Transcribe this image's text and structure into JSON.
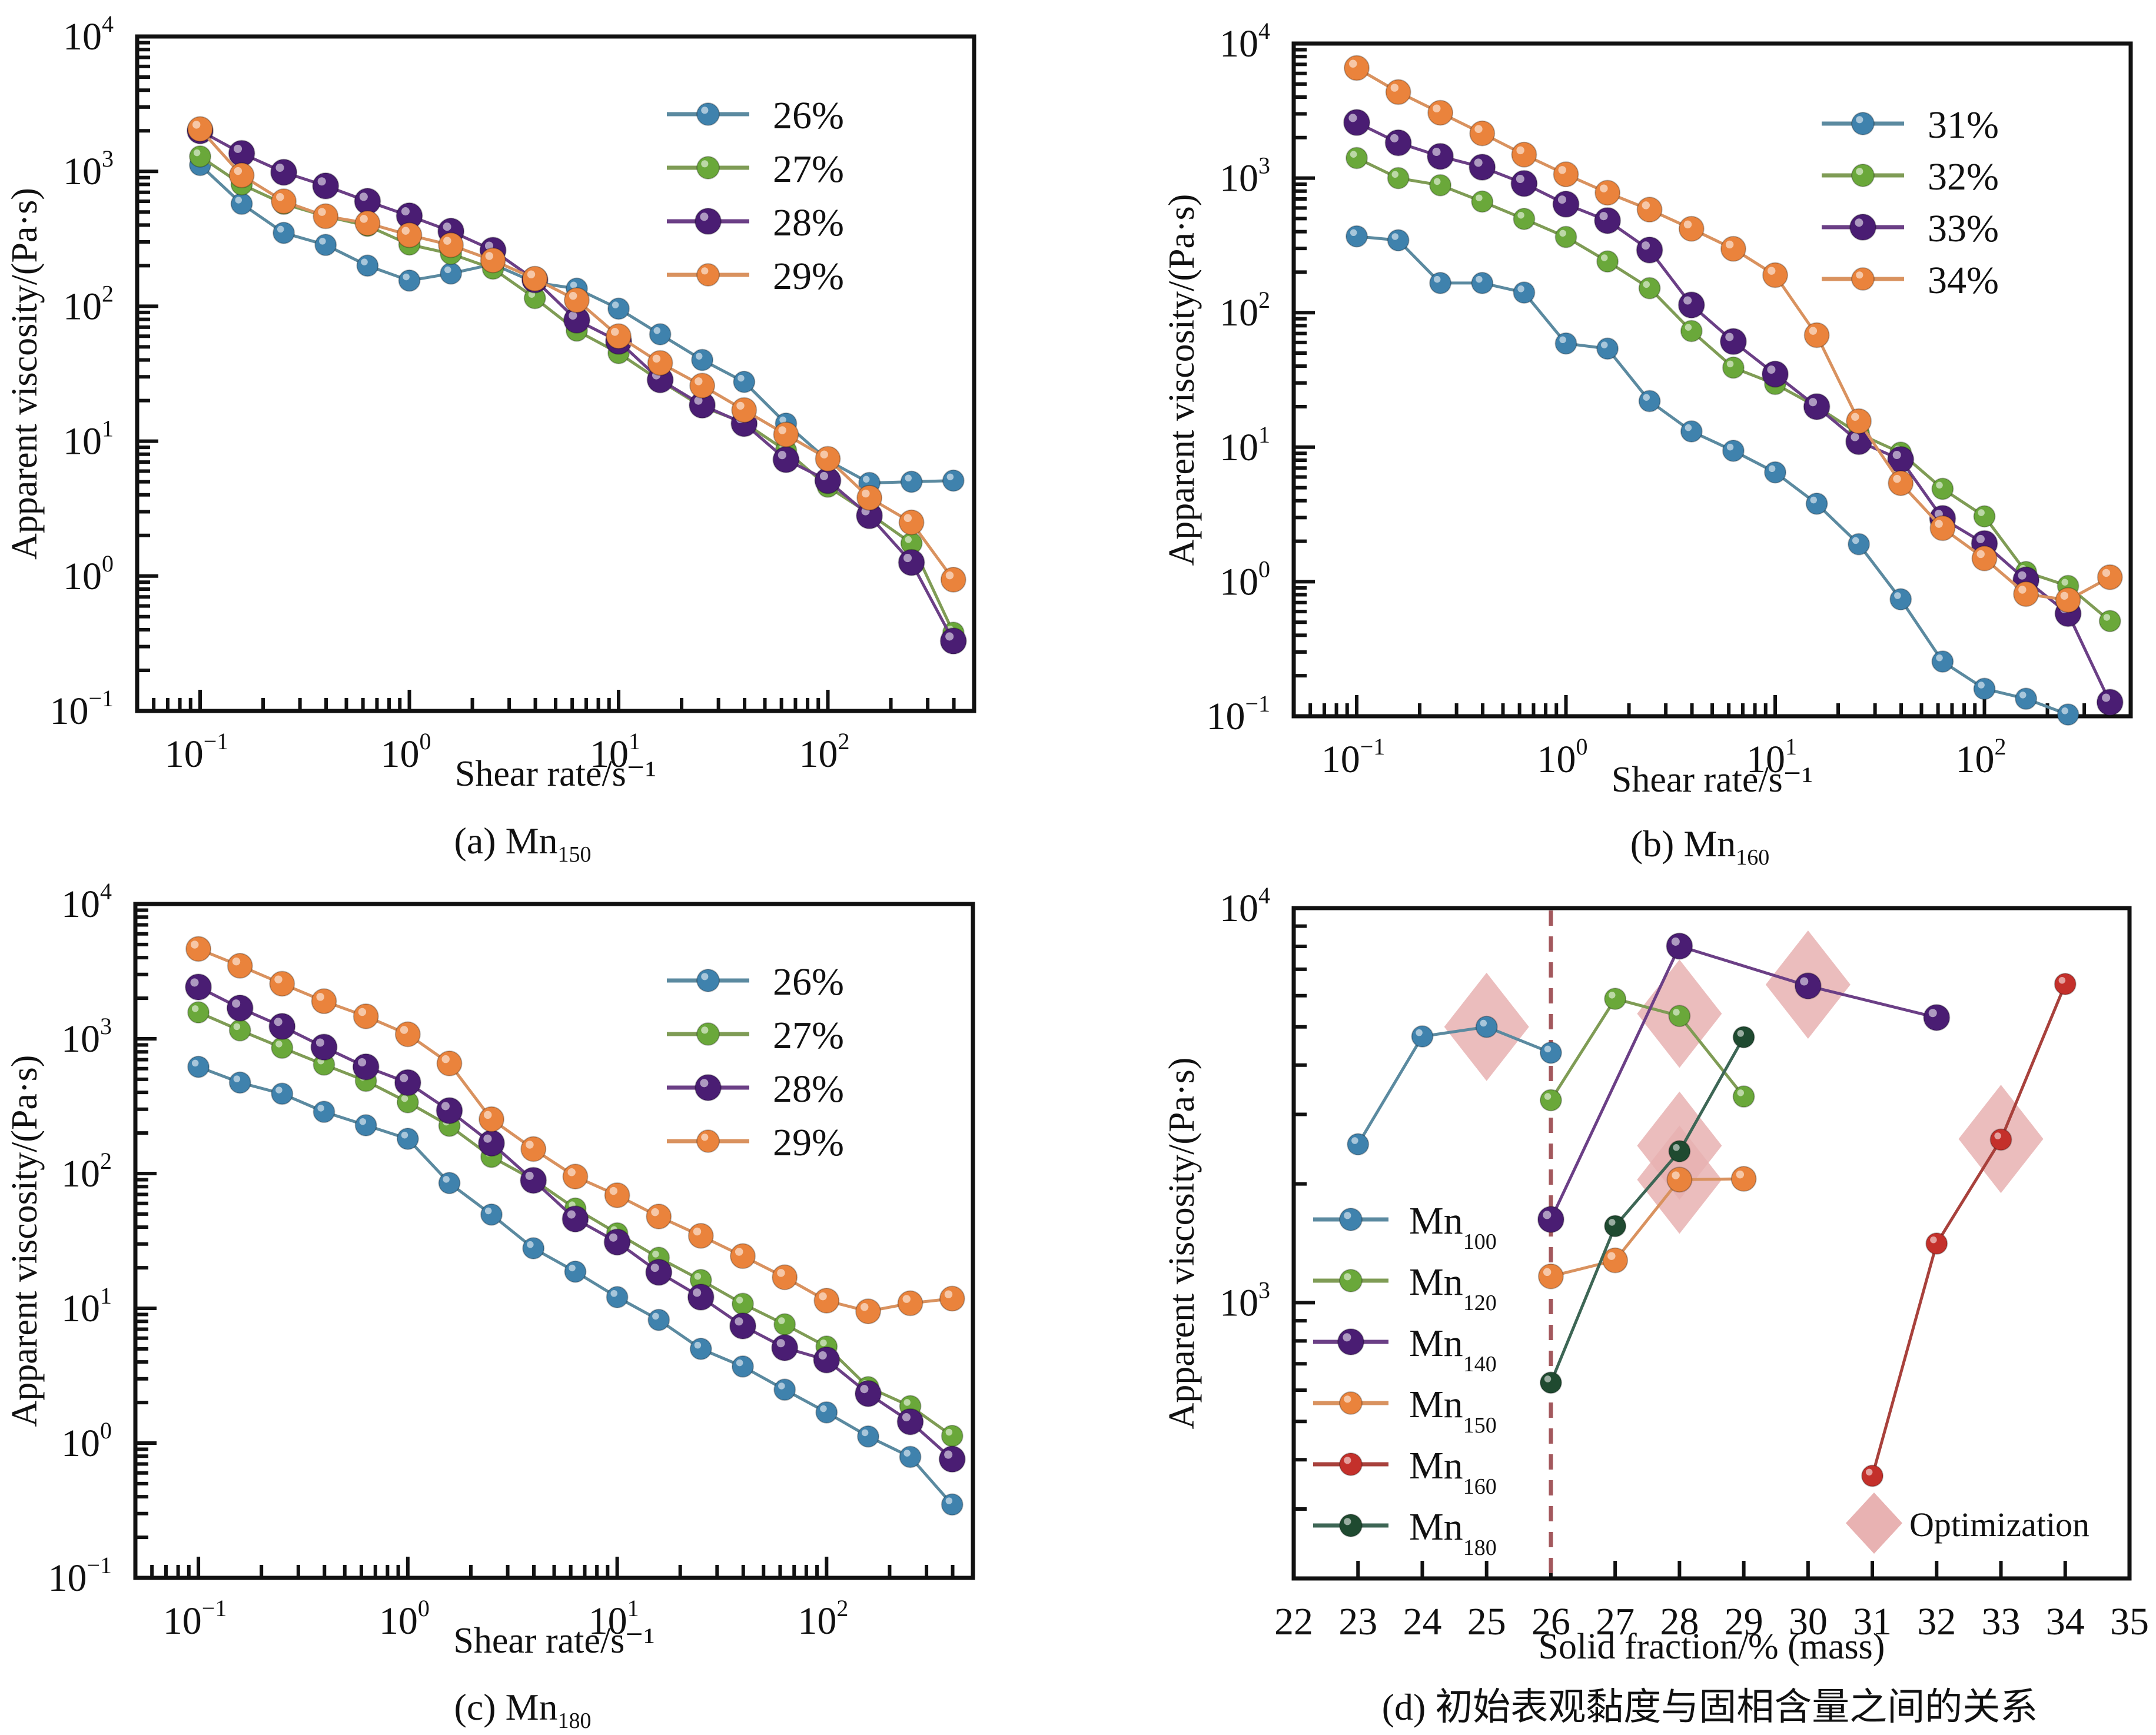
{
  "figure_captions": {
    "a": {
      "prefix": "(a) Mn",
      "sub": "150"
    },
    "b": {
      "prefix": "(b) Mn",
      "sub": "160"
    },
    "c": {
      "prefix": "(c) Mn",
      "sub": "180"
    },
    "d": {
      "text": "(d) 初始表观黏度与固相含量之间的关系"
    }
  },
  "colors": {
    "blue": "#3f82ad",
    "blue_line": "#5b8aa0",
    "green": "#6aa83a",
    "green_line": "#7f9c55",
    "purple": "#4a1d73",
    "purple_line": "#6b3f86",
    "orange": "#ea833c",
    "orange_line": "#d9925f",
    "red": "#c4302b",
    "red_line": "#a8413c",
    "darkgreen": "#1f4a30",
    "darkgreen_line": "#3d6655",
    "optimization": "#e8b2b2",
    "reference_line": "#a3585d",
    "axis": "#111111"
  },
  "chart_data": [
    {
      "id": "a",
      "type": "line",
      "title": "(a) Mn150",
      "xlabel": "Shear rate/s⁻¹",
      "ylabel": "Apparent viscosity/(Pa·s)",
      "xscale": "log",
      "yscale": "log",
      "xlim": [
        0.05,
        500
      ],
      "ylim": [
        0.1,
        10000
      ],
      "x_ticks": [
        {
          "base": "10",
          "exp": "−1"
        },
        {
          "base": "10",
          "exp": "0"
        },
        {
          "base": "10",
          "exp": "1"
        },
        {
          "base": "10",
          "exp": "2"
        }
      ],
      "y_ticks": [
        {
          "base": "10",
          "exp": "−1"
        },
        {
          "base": "10",
          "exp": "0"
        },
        {
          "base": "10",
          "exp": "1"
        },
        {
          "base": "10",
          "exp": "2"
        },
        {
          "base": "10",
          "exp": "3"
        },
        {
          "base": "10",
          "exp": "4"
        }
      ],
      "legend_position": "top-right",
      "grid": false,
      "x": [
        0.1,
        0.158,
        0.251,
        0.398,
        0.631,
        1,
        1.58,
        2.51,
        3.98,
        6.31,
        10,
        15.8,
        25.1,
        39.8,
        63.1,
        100,
        158,
        251,
        398
      ],
      "series": [
        {
          "name": "26%",
          "color_key": "blue",
          "values": [
            1115,
            575,
            350,
            285,
            200,
            155,
            175,
            205,
            150,
            135,
            96,
            62,
            40,
            27.5,
            13.5,
            7.2,
            4.9,
            5.0,
            5.1
          ]
        },
        {
          "name": "27%",
          "color_key": "green",
          "values": [
            1290,
            800,
            575,
            465,
            395,
            287,
            245,
            190,
            115,
            66,
            45,
            28,
            18,
            13.7,
            8.5,
            4.6,
            2.9,
            1.75,
            0.38
          ]
        },
        {
          "name": "28%",
          "color_key": "purple",
          "values": [
            2000,
            1360,
            985,
            780,
            600,
            468,
            360,
            260,
            157,
            79,
            55,
            28.5,
            18.5,
            13.5,
            7.3,
            5.1,
            2.8,
            1.26,
            0.33
          ]
        },
        {
          "name": "29%",
          "color_key": "orange",
          "values": [
            2060,
            935,
            600,
            465,
            413,
            337,
            284,
            219,
            160,
            111,
            60,
            38,
            25.8,
            17,
            11.2,
            7.4,
            3.8,
            2.5,
            0.94
          ]
        }
      ]
    },
    {
      "id": "b",
      "type": "line",
      "title": "(b) Mn160",
      "xlabel": "Shear rate/s⁻¹",
      "ylabel": "Apparent viscosity/(Pa·s)",
      "xscale": "log",
      "yscale": "log",
      "xlim": [
        0.05,
        500
      ],
      "ylim": [
        0.1,
        10000
      ],
      "x_ticks": [
        {
          "base": "10",
          "exp": "−1"
        },
        {
          "base": "10",
          "exp": "0"
        },
        {
          "base": "10",
          "exp": "1"
        },
        {
          "base": "10",
          "exp": "2"
        }
      ],
      "y_ticks": [
        {
          "base": "10",
          "exp": "−1"
        },
        {
          "base": "10",
          "exp": "0"
        },
        {
          "base": "10",
          "exp": "1"
        },
        {
          "base": "10",
          "exp": "2"
        },
        {
          "base": "10",
          "exp": "3"
        },
        {
          "base": "10",
          "exp": "4"
        }
      ],
      "legend_position": "top-right",
      "grid": false,
      "x": [
        0.1,
        0.158,
        0.251,
        0.398,
        0.631,
        1,
        1.58,
        2.51,
        3.98,
        6.31,
        10,
        15.8,
        25.1,
        39.8,
        63.1,
        100,
        158,
        251,
        398
      ],
      "series": [
        {
          "name": "31%",
          "color_key": "blue",
          "values": [
            369,
            345,
            166,
            166,
            141,
            59,
            54,
            22,
            13.1,
            9.4,
            6.5,
            3.8,
            1.9,
            0.74,
            0.255,
            0.16,
            0.135,
            0.103,
            null
          ]
        },
        {
          "name": "32%",
          "color_key": "green",
          "values": [
            1410,
            1000,
            885,
            669,
            497,
            365,
            240,
            152,
            73,
            39,
            29.5,
            20,
            12.6,
            9.1,
            4.9,
            3.06,
            1.18,
            0.93,
            0.51
          ]
        },
        {
          "name": "33%",
          "color_key": "purple",
          "values": [
            2590,
            1830,
            1450,
            1205,
            912,
            640,
            483,
            292,
            114,
            61,
            34.9,
            20,
            11,
            8.1,
            2.95,
            1.92,
            1.03,
            0.58,
            0.127
          ]
        },
        {
          "name": "34%",
          "color_key": "orange",
          "values": [
            6580,
            4360,
            3060,
            2150,
            1494,
            1067,
            778,
            583,
            420,
            298,
            190,
            68,
            15.6,
            5.4,
            2.5,
            1.49,
            0.81,
            0.73,
            1.08
          ]
        }
      ]
    },
    {
      "id": "c",
      "type": "line",
      "title": "(c) Mn180",
      "xlabel": "Shear rate/s⁻¹",
      "ylabel": "Apparent viscosity/(Pa·s)",
      "xscale": "log",
      "yscale": "log",
      "xlim": [
        0.05,
        500
      ],
      "ylim": [
        0.1,
        10000
      ],
      "x_ticks": [
        {
          "base": "10",
          "exp": "−1"
        },
        {
          "base": "10",
          "exp": "0"
        },
        {
          "base": "10",
          "exp": "1"
        },
        {
          "base": "10",
          "exp": "2"
        }
      ],
      "y_ticks": [
        {
          "base": "10",
          "exp": "−1"
        },
        {
          "base": "10",
          "exp": "0"
        },
        {
          "base": "10",
          "exp": "1"
        },
        {
          "base": "10",
          "exp": "2"
        },
        {
          "base": "10",
          "exp": "3"
        },
        {
          "base": "10",
          "exp": "4"
        }
      ],
      "legend_position": "top-right",
      "grid": false,
      "x": [
        0.1,
        0.158,
        0.251,
        0.398,
        0.631,
        1,
        1.58,
        2.51,
        3.98,
        6.31,
        10,
        15.8,
        25.1,
        39.8,
        63.1,
        100,
        158,
        251,
        398
      ],
      "series": [
        {
          "name": "26%",
          "color_key": "blue",
          "values": [
            619,
            473,
            391,
            287,
            228,
            181,
            85,
            49.6,
            27.9,
            18.7,
            12.1,
            8.2,
            5.0,
            3.7,
            2.49,
            1.69,
            1.12,
            0.79,
            0.35
          ]
        },
        {
          "name": "27%",
          "color_key": "green",
          "values": [
            1570,
            1155,
            858,
            643,
            487,
            338,
            226,
            133,
            90,
            55,
            36,
            23.7,
            16.2,
            10.8,
            7.6,
            5.2,
            2.6,
            1.88,
            1.13
          ]
        },
        {
          "name": "28%",
          "color_key": "purple",
          "values": [
            2420,
            1690,
            1235,
            867,
            619,
            473,
            293,
            168,
            89,
            46,
            31,
            18.5,
            12.1,
            7.4,
            5.1,
            4.14,
            2.33,
            1.44,
            0.76
          ]
        },
        {
          "name": "29%",
          "color_key": "orange",
          "values": [
            4640,
            3480,
            2560,
            1900,
            1468,
            1080,
            656,
            253,
            152,
            95,
            69,
            48,
            34.5,
            24.4,
            17,
            11.4,
            9.5,
            10.9,
            11.8
          ]
        }
      ]
    },
    {
      "id": "d",
      "type": "line",
      "title": "(d) 初始表观黏度与固相含量之间的关系",
      "xlabel": "Solid fraction/% (mass)",
      "ylabel": "Apparent viscosity/(Pa·s)",
      "xscale": "linear",
      "yscale": "log",
      "xlim": [
        22,
        35
      ],
      "ylim": [
        200,
        10000
      ],
      "x_ticks": [
        "22",
        "23",
        "24",
        "25",
        "26",
        "27",
        "28",
        "29",
        "30",
        "31",
        "32",
        "33",
        "34",
        "35"
      ],
      "y_ticks": [
        {
          "base": "10",
          "exp": "3"
        },
        {
          "base": "10",
          "exp": "4"
        }
      ],
      "legend_position": "bottom-left",
      "grid": false,
      "reference_line": {
        "axis": "x",
        "value": 26,
        "style": "dashed"
      },
      "series": [
        {
          "name": "Mn",
          "sub": "100",
          "color_key": "blue",
          "x": [
            23,
            24,
            25,
            26
          ],
          "values": [
            2520,
            4730,
            5000,
            4300
          ]
        },
        {
          "name": "Mn",
          "sub": "120",
          "color_key": "green",
          "x": [
            26,
            27,
            28,
            29
          ],
          "values": [
            3260,
            5890,
            5330,
            3330
          ]
        },
        {
          "name": "Mn",
          "sub": "140",
          "color_key": "purple",
          "x": [
            26,
            28,
            30,
            32
          ],
          "values": [
            1625,
            8010,
            6350,
            5280
          ]
        },
        {
          "name": "Mn",
          "sub": "150",
          "color_key": "orange",
          "x": [
            26,
            27,
            28,
            29
          ],
          "values": [
            1166,
            1280,
            2050,
            2060
          ]
        },
        {
          "name": "Mn",
          "sub": "160",
          "color_key": "red",
          "x": [
            31,
            32,
            33,
            34
          ],
          "values": [
            364,
            1412,
            2590,
            6420
          ]
        },
        {
          "name": "Mn",
          "sub": "180",
          "color_key": "darkgreen",
          "x": [
            26,
            27,
            28,
            29
          ],
          "values": [
            627,
            1564,
            2420,
            4710
          ]
        }
      ],
      "optimization": {
        "label": "Optimization",
        "points": [
          {
            "x": 25,
            "y": 5000
          },
          {
            "x": 28,
            "y": 5400
          },
          {
            "x": 30,
            "y": 6400
          },
          {
            "x": 28,
            "y": 2500
          },
          {
            "x": 28,
            "y": 2050
          },
          {
            "x": 33,
            "y": 2600
          }
        ]
      }
    }
  ]
}
